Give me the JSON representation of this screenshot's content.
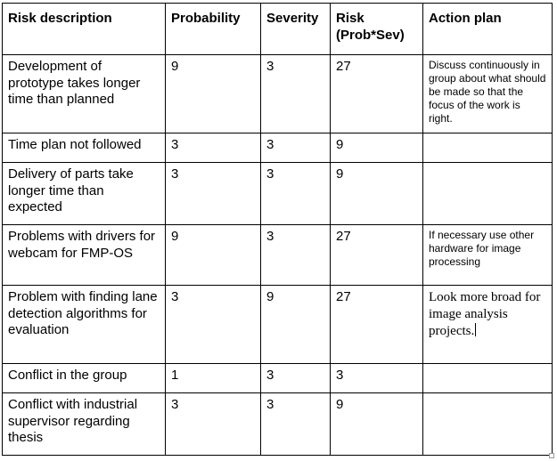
{
  "columns": [
    "Risk description",
    "Probability",
    "Severity",
    "Risk (Prob*Sev)",
    "Action plan"
  ],
  "rows": [
    {
      "description": "Development of prototype takes longer time than planned",
      "probability": "9",
      "severity": "3",
      "risk": "27",
      "action": "Discuss continuously in group about what should be made so that the focus of the work is right."
    },
    {
      "description": "Time plan not followed",
      "probability": "3",
      "severity": "3",
      "risk": "9",
      "action": ""
    },
    {
      "description": "Delivery of parts take longer time than expected",
      "probability": "3",
      "severity": "3",
      "risk": "9",
      "action": ""
    },
    {
      "description": "Problems with drivers for webcam for FMP-OS",
      "probability": "9",
      "severity": "3",
      "risk": "27",
      "action": "If necessary use other hardware for image processing"
    },
    {
      "description": "Problem with finding lane detection algorithms for evaluation",
      "probability": "3",
      "severity": "9",
      "risk": "27",
      "action": "Look more broad for image analysis projects."
    },
    {
      "description": "Conflict in the group",
      "probability": "1",
      "severity": "3",
      "risk": "3",
      "action": ""
    },
    {
      "description": "Conflict with industrial supervisor regarding thesis",
      "probability": "3",
      "severity": "3",
      "risk": "9",
      "action": ""
    }
  ]
}
